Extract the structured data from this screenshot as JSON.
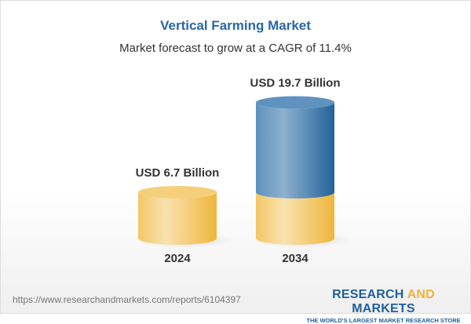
{
  "title": "Vertical Farming Market",
  "subtitle": "Market forecast to grow at a CAGR of 11.4%",
  "chart_data": {
    "type": "bar",
    "style": "3d-cylinder",
    "categories": [
      "2024",
      "2034"
    ],
    "values": [
      6.7,
      19.7
    ],
    "data_labels": [
      "USD 6.7 Billion",
      "USD 19.7 Billion"
    ],
    "unit": "USD Billion",
    "colors": {
      "base": "#f2c45a",
      "growth": "#3f7bb0"
    }
  },
  "footer": {
    "url": "https://www.researchandmarkets.com/reports/6104397",
    "logo_part1": "RESEARCH ",
    "logo_part2": "AND",
    "logo_part3": " MARKETS",
    "tagline": "THE WORLD'S LARGEST MARKET RESEARCH STORE"
  }
}
